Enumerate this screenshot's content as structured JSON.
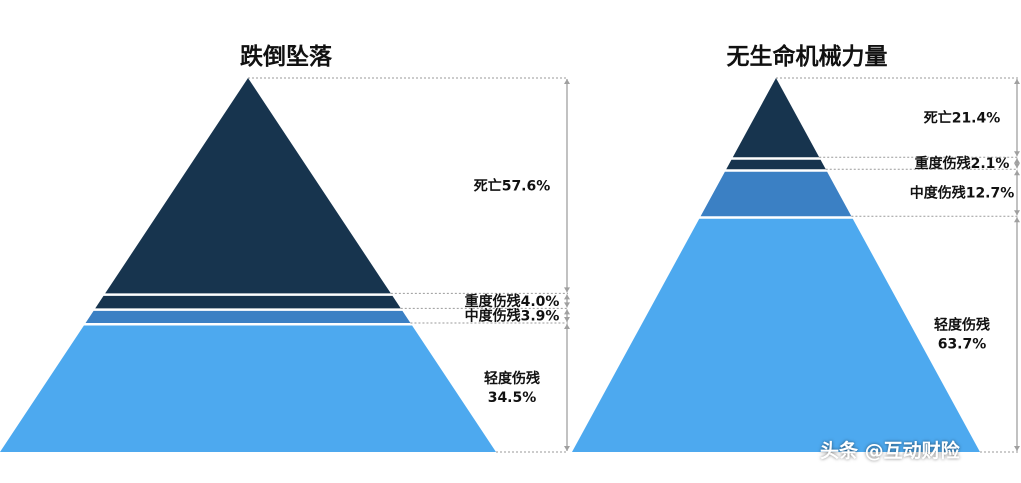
{
  "colors": {
    "dark": "#17344e",
    "mid": "#3b80c4",
    "light": "#4da9ef",
    "gridline": "#9a9a9a",
    "bracket": "#a0a0a0",
    "text": "#111111"
  },
  "watermark": "头条 @互动财险",
  "chart_data": [
    {
      "type": "pyramid",
      "title": "跌倒坠落",
      "unit": "%",
      "layers": [
        {
          "name": "死亡",
          "value": 57.6,
          "label": "死亡57.6%",
          "color": "dark"
        },
        {
          "name": "重度伤残",
          "value": 4.0,
          "label": "重度伤残4.0%",
          "color": "dark"
        },
        {
          "name": "中度伤残",
          "value": 3.9,
          "label": "中度伤残3.9%",
          "color": "mid"
        },
        {
          "name": "轻度伤残",
          "value": 34.5,
          "label_lines": [
            "轻度伤残",
            "34.5%"
          ],
          "color": "light"
        }
      ]
    },
    {
      "type": "pyramid",
      "title": "无生命机械力量",
      "unit": "%",
      "layers": [
        {
          "name": "死亡",
          "value": 21.4,
          "label": "死亡21.4%",
          "color": "dark"
        },
        {
          "name": "重度伤残",
          "value": 2.1,
          "label": "重度伤残2.1%",
          "color": "dark"
        },
        {
          "name": "中度伤残",
          "value": 12.7,
          "label": "中度伤残12.7%",
          "color": "mid"
        },
        {
          "name": "轻度伤残",
          "value": 63.7,
          "label_lines": [
            "轻度伤残",
            "63.7%"
          ],
          "color": "light"
        }
      ]
    }
  ]
}
